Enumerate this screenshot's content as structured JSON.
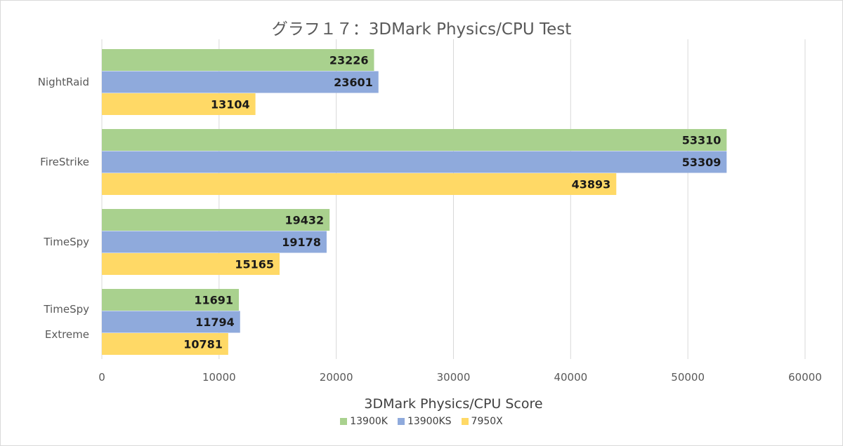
{
  "chart_data": {
    "type": "bar",
    "orientation": "horizontal",
    "title": "グラフ１７：3DMark Physics/CPU Test",
    "xlabel": "3DMark Physics/CPU Score",
    "ylabel": "",
    "xlim": [
      0,
      60000
    ],
    "ticks": [
      0,
      10000,
      20000,
      30000,
      40000,
      50000,
      60000
    ],
    "grid": true,
    "legend_position": "bottom",
    "categories": [
      {
        "lines": [
          "NightRaid"
        ]
      },
      {
        "lines": [
          "FireStrike"
        ]
      },
      {
        "lines": [
          "TimeSpy"
        ]
      },
      {
        "lines": [
          "TimeSpy",
          "Extreme"
        ]
      }
    ],
    "series": [
      {
        "name": "13900K",
        "color": "#a9d18e",
        "values": [
          23226,
          53310,
          19432,
          11691
        ]
      },
      {
        "name": "13900KS",
        "color": "#8faadc",
        "values": [
          23601,
          53309,
          19178,
          11794
        ]
      },
      {
        "name": "7950X",
        "color": "#ffd966",
        "values": [
          13104,
          43893,
          15165,
          10781
        ]
      }
    ]
  }
}
